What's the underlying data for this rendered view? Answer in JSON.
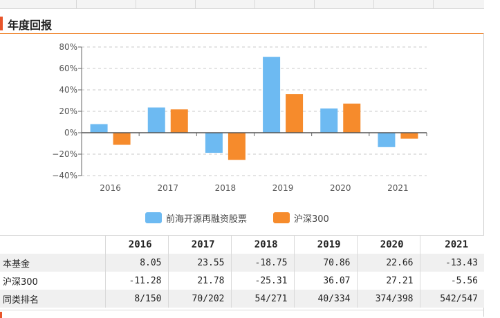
{
  "section": {
    "title": "年度回报"
  },
  "colors": {
    "fund": "#6dbaf2",
    "index": "#f68b2c",
    "accent": "#e8552b",
    "header_rule": "#f08c3a"
  },
  "chart_data": {
    "type": "bar",
    "categories": [
      "2016",
      "2017",
      "2018",
      "2019",
      "2020",
      "2021"
    ],
    "series": [
      {
        "name": "前海开源再融资股票",
        "values": [
          8.05,
          23.55,
          -18.75,
          70.86,
          22.66,
          -13.43
        ]
      },
      {
        "name": "沪深300",
        "values": [
          -11.28,
          21.78,
          -25.31,
          36.07,
          27.21,
          -5.56
        ]
      }
    ],
    "yticks": [
      "80%",
      "60%",
      "40%",
      "20%",
      "0%",
      "−20%",
      "−40%"
    ],
    "ylim": [
      -40,
      80
    ],
    "grid": true,
    "legend_position": "bottom"
  },
  "table": {
    "headers": [
      "",
      "2016",
      "2017",
      "2018",
      "2019",
      "2020",
      "2021"
    ],
    "rows": [
      {
        "label": "本基金",
        "cells": [
          "8.05",
          "23.55",
          "-18.75",
          "70.86",
          "22.66",
          "-13.43"
        ]
      },
      {
        "label": "沪深300",
        "cells": [
          "-11.28",
          "21.78",
          "-25.31",
          "36.07",
          "27.21",
          "-5.56"
        ]
      },
      {
        "label": "同类排名",
        "cells": [
          "8/150",
          "70/202",
          "54/271",
          "40/334",
          "374/398",
          "542/547"
        ]
      }
    ]
  }
}
